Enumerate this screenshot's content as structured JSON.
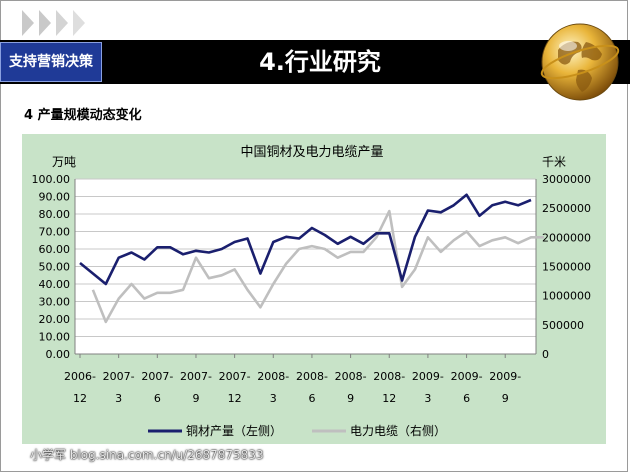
{
  "header": {
    "left_tag": "支持营销决策",
    "title": "4.行业研究"
  },
  "section": {
    "title": "4 产量规模动态变化"
  },
  "watermark": "小学军 blog.sina.com.cn/u/2687875833",
  "colors": {
    "copper": "#1a1f6e",
    "cable": "#bfbfbf",
    "panel": "#c8e3c8",
    "header": "#000000",
    "tag": "#1f3a97"
  },
  "chart_data": {
    "type": "line",
    "title": "中国铜材及电力电缆产量",
    "y_left_unit": "万吨",
    "y_right_unit": "千米",
    "y_left_lim": [
      0,
      100
    ],
    "y_left_ticks": [
      "0.00",
      "10.00",
      "20.00",
      "30.00",
      "40.00",
      "50.00",
      "60.00",
      "70.00",
      "80.00",
      "90.00",
      "100.00"
    ],
    "y_right_lim": [
      0,
      3000000
    ],
    "y_right_ticks": [
      "0",
      "500000",
      "1000000",
      "1500000",
      "2000000",
      "2500000",
      "3000000"
    ],
    "x_tick_labels": [
      [
        "2006-",
        "12"
      ],
      [
        "2007-",
        "3"
      ],
      [
        "2007-",
        "6"
      ],
      [
        "2007-",
        "9"
      ],
      [
        "2007-",
        "12"
      ],
      [
        "2008-",
        "3"
      ],
      [
        "2008-",
        "6"
      ],
      [
        "2008-",
        "9"
      ],
      [
        "2008-",
        "12"
      ],
      [
        "2009-",
        "3"
      ],
      [
        "2009-",
        "6"
      ],
      [
        "2009-",
        "9"
      ]
    ],
    "grid": true,
    "legend_position": "bottom",
    "series": [
      {
        "name": "铜材产量（左侧）",
        "axis": "left",
        "values": [
          52,
          46,
          40,
          55,
          58,
          54,
          61,
          61,
          57,
          59,
          58,
          60,
          64,
          66,
          46,
          64,
          67,
          66,
          72,
          68,
          63,
          67,
          63,
          69,
          69,
          42,
          67,
          82,
          81,
          85,
          91,
          79,
          85,
          87,
          85,
          88
        ]
      },
      {
        "name": "电力电缆（右侧）",
        "axis": "right",
        "x_start": 1,
        "values": [
          1100000,
          550000,
          950000,
          1200000,
          950000,
          1050000,
          1050000,
          1100000,
          1650000,
          1300000,
          1350000,
          1450000,
          1100000,
          800000,
          1200000,
          1550000,
          1800000,
          1850000,
          1800000,
          1650000,
          1750000,
          1750000,
          2000000,
          2450000,
          1150000,
          1450000,
          2000000,
          1750000,
          1950000,
          2100000,
          1850000,
          1950000,
          2000000,
          1900000,
          2000000,
          2000000
        ]
      }
    ]
  }
}
